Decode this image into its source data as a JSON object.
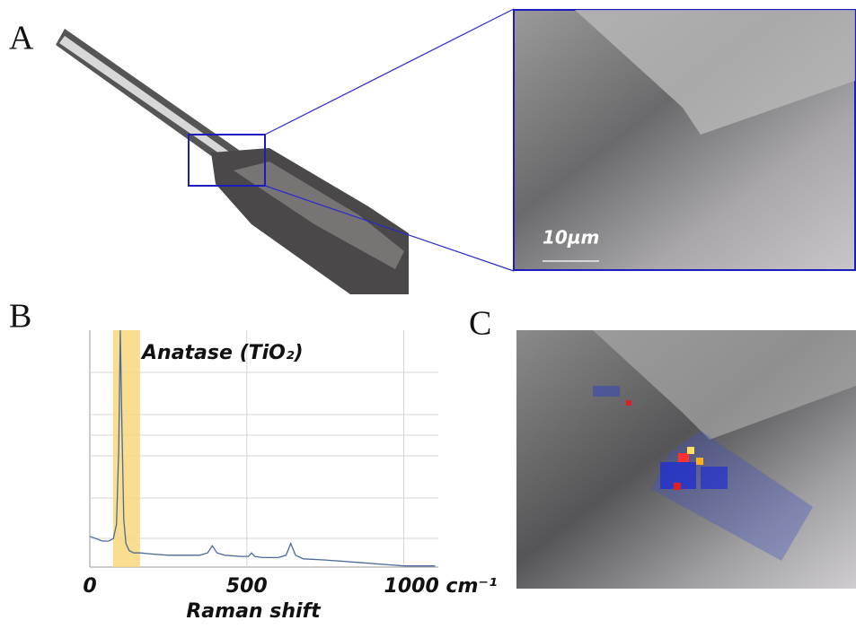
{
  "panels": {
    "a": "A",
    "b": "B",
    "c": "C"
  },
  "scale_bar": "10µm",
  "chart_data": {
    "type": "line",
    "annotation": "Anatase (TiO₂)",
    "x_label": "Raman shift",
    "xlim": [
      0,
      1110
    ],
    "ylim": [
      0,
      100
    ],
    "xticks": [
      0,
      500,
      {
        "value": 1000,
        "label": "1000 cm⁻¹"
      }
    ],
    "highlight": [
      74,
      160
    ],
    "highlight_color": "#f8d77c",
    "color": "#4a6a9a",
    "x": [
      0,
      20,
      40,
      60,
      75,
      85,
      92,
      97,
      102,
      108,
      115,
      125,
      140,
      160,
      200,
      250,
      300,
      350,
      375,
      390,
      405,
      430,
      480,
      505,
      515,
      525,
      550,
      600,
      625,
      640,
      655,
      680,
      750,
      850,
      950,
      1000,
      1100
    ],
    "values": [
      13,
      12,
      11,
      11,
      12,
      18,
      50,
      100,
      60,
      20,
      10,
      7,
      6,
      6,
      5.5,
      5,
      5,
      5,
      6,
      9,
      6,
      5,
      4.5,
      4.5,
      6,
      4.5,
      4,
      4,
      5,
      10,
      5,
      3.5,
      3,
      2,
      1,
      0.5,
      0.5
    ]
  }
}
